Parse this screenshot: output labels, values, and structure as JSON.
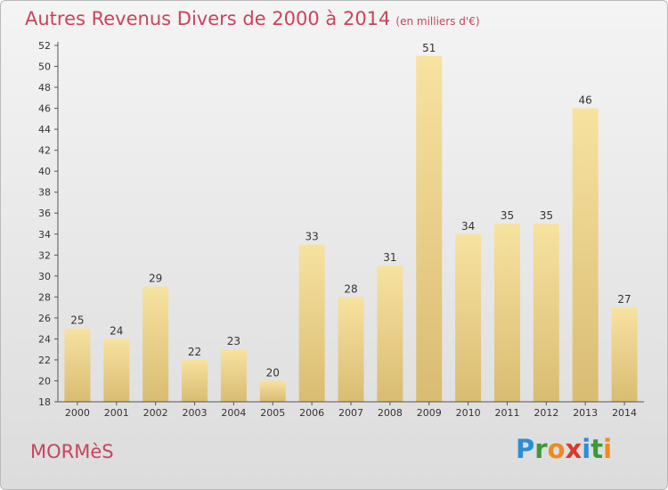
{
  "header": {
    "title": "Autres Revenus Divers de 2000 à 2014",
    "unit": "(en milliers d'€)"
  },
  "footer": {
    "city": "MORMèS",
    "logo": {
      "letters": [
        "P",
        "r",
        "o",
        "x",
        "i",
        "t",
        "i"
      ],
      "colors": [
        "#2a8fd8",
        "#3a9a3a",
        "#f08a1c",
        "#d93a2a",
        "#2a8fd8",
        "#3a9a3a",
        "#f08a1c"
      ]
    }
  },
  "colors": {
    "title": "#c8445c",
    "bar_light": "#f7e2a0",
    "bar_dark": "#d9bc72",
    "axis": "#555555"
  },
  "chart_data": {
    "type": "bar",
    "title": "Autres Revenus Divers de 2000 à 2014",
    "subtitle": "(en milliers d'€)",
    "xlabel": "",
    "ylabel": "",
    "categories": [
      "2000",
      "2001",
      "2002",
      "2003",
      "2004",
      "2005",
      "2006",
      "2007",
      "2008",
      "2009",
      "2010",
      "2011",
      "2012",
      "2013",
      "2014"
    ],
    "values": [
      25,
      24,
      29,
      22,
      23,
      20,
      33,
      28,
      31,
      51,
      34,
      35,
      35,
      46,
      27
    ],
    "ylim": [
      18,
      52
    ],
    "yticks": [
      18,
      20,
      22,
      24,
      26,
      28,
      30,
      32,
      34,
      36,
      38,
      40,
      42,
      44,
      46,
      48,
      50,
      52
    ],
    "grid": false,
    "data_labels": true
  }
}
